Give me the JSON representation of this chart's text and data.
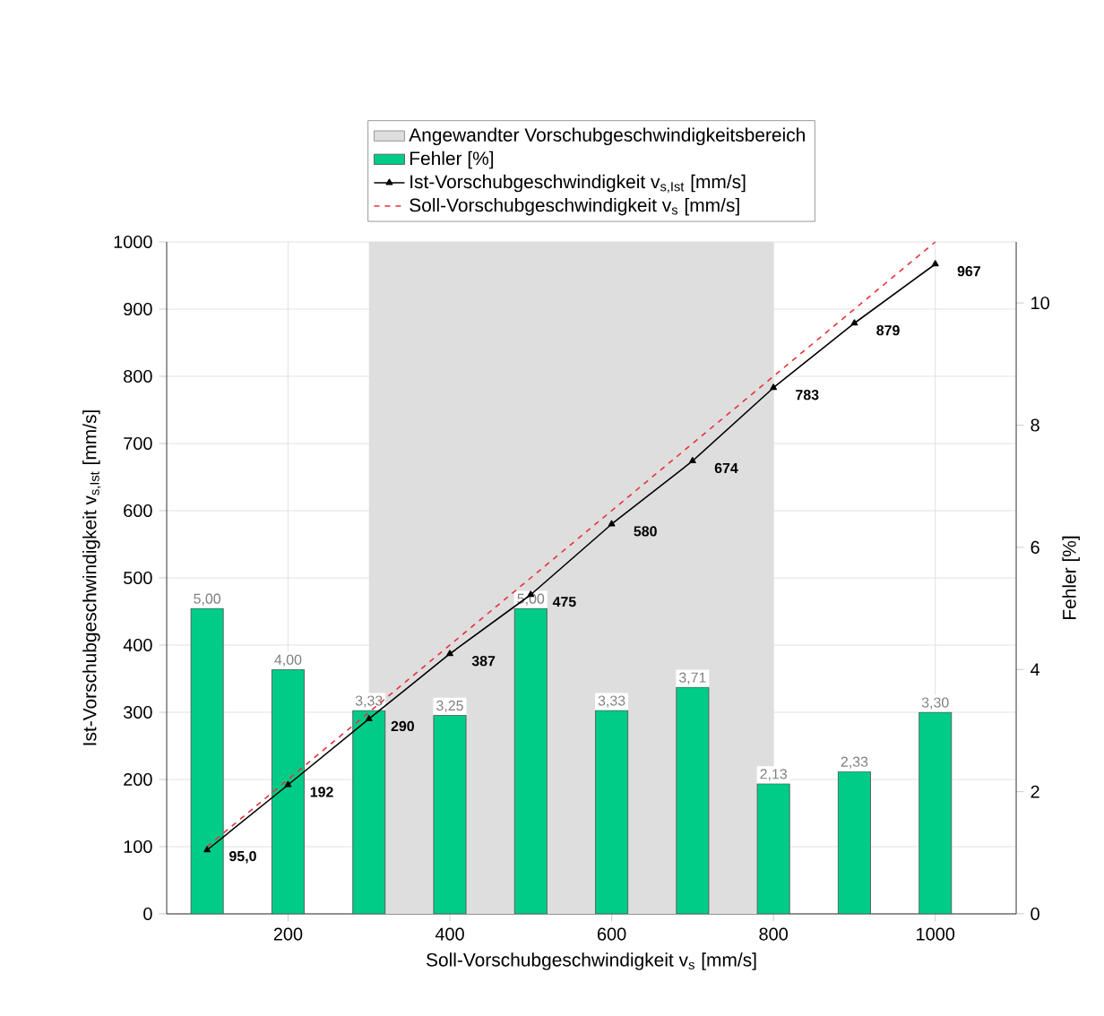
{
  "chart_data": {
    "type": "line",
    "xlabel": "Soll-Vorschubgeschwindigkeit v$_{s}$ [mm/s]",
    "ylabel": "Ist-Vorschubgeschwindigkeit v$_{s,Ist}$ [mm/s]",
    "y2label": "Fehler [%]",
    "x": [
      100,
      200,
      300,
      400,
      500,
      600,
      700,
      800,
      900,
      1000
    ],
    "xlim": [
      50,
      1100
    ],
    "xticks": [
      200,
      400,
      600,
      800,
      1000
    ],
    "ylim": [
      0,
      1000
    ],
    "yticks": [
      0,
      100,
      200,
      300,
      400,
      500,
      600,
      700,
      800,
      900,
      1000
    ],
    "y2lim": [
      0,
      11
    ],
    "y2ticks": [
      0,
      2,
      4,
      6,
      8,
      10
    ],
    "grid": true,
    "legend": "top",
    "bands": [
      {
        "axis": "x",
        "from": 300,
        "to": 800,
        "label": "Angewandter Vorschubgeschwindigkeitsbereich",
        "color": "#dedede"
      }
    ],
    "series": [
      {
        "name": "Fehler [%]",
        "type": "bar",
        "axis": "y2",
        "color": "#00cc88",
        "values": [
          5.0,
          4.0,
          3.33,
          3.25,
          5.0,
          3.33,
          3.71,
          2.13,
          2.33,
          3.3
        ],
        "value_labels": [
          "5,00",
          "4,00",
          "3,33",
          "3,25",
          "5,00",
          "3,33",
          "3,71",
          "2,13",
          "2,33",
          "3,30"
        ]
      },
      {
        "name": "Ist-Vorschubgeschwindigkeit v$_{s,Ist}$ [mm/s]",
        "color": "#000000",
        "marker": "triangle",
        "line_style": "solid",
        "values": [
          95.0,
          192,
          290,
          387,
          475,
          580,
          674,
          783,
          879,
          967
        ],
        "value_labels": [
          "95,0",
          "192",
          "290",
          "387",
          "475",
          "580",
          "674",
          "783",
          "879",
          "967"
        ]
      },
      {
        "name": "Soll-Vorschubgeschwindigkeit v$_{s}$ [mm/s]",
        "color": "#e8303a",
        "line_style": "dashed",
        "values": [
          100,
          200,
          300,
          400,
          500,
          600,
          700,
          800,
          900,
          1000
        ]
      }
    ]
  }
}
